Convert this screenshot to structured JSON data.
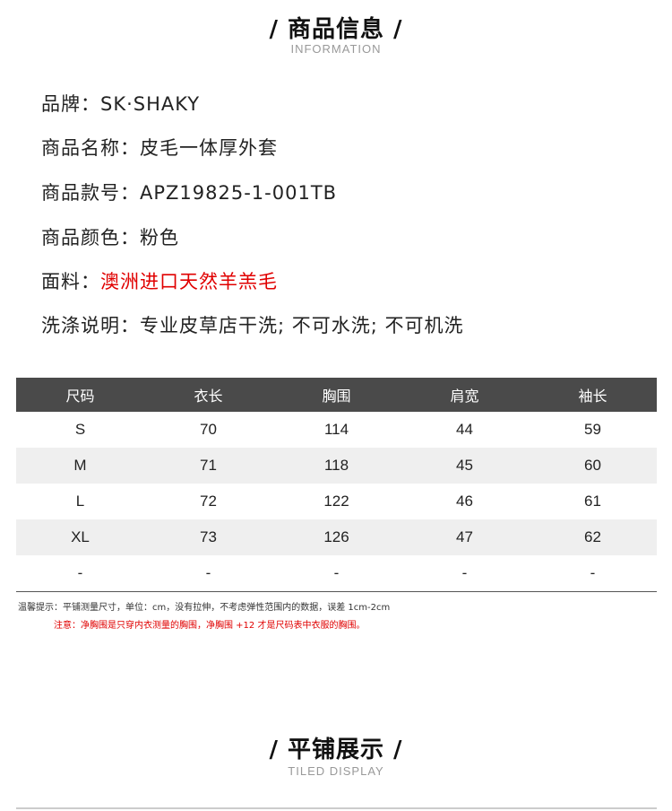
{
  "info_section": {
    "title": "/ 商品信息 /",
    "subtitle": "INFORMATION"
  },
  "info": [
    {
      "label": "品牌：",
      "value": "SK·SHAKY"
    },
    {
      "label": "商品名称：",
      "value": "皮毛一体厚外套"
    },
    {
      "label": "商品款号：",
      "value": "APZ19825-1-001TB"
    },
    {
      "label": "商品颜色：",
      "value": "粉色"
    },
    {
      "label": "面料：",
      "value": "澳洲进口天然羊羔毛"
    },
    {
      "label": "洗涤说明：",
      "value": "专业皮草店干洗; 不可水洗; 不可机洗"
    }
  ],
  "accent_color": "#e00000",
  "size_table": {
    "headers": [
      "尺码",
      "衣长",
      "胸围",
      "肩宽",
      "袖长"
    ],
    "rows": [
      [
        "S",
        "70",
        "114",
        "44",
        "59"
      ],
      [
        "M",
        "71",
        "118",
        "45",
        "60"
      ],
      [
        "L",
        "72",
        "122",
        "46",
        "61"
      ],
      [
        "XL",
        "73",
        "126",
        "47",
        "62"
      ],
      [
        "-",
        "-",
        "-",
        "-",
        "-"
      ]
    ]
  },
  "notes": {
    "tip": "温馨提示：平铺测量尺寸，单位：cm，没有拉伸，不考虑弹性范围内的数据，误差 1cm-2cm",
    "warning": "注意：净胸围是只穿内衣测量的胸围，净胸围 +12 才是尺码表中衣服的胸围。"
  },
  "display_section": {
    "title": "/ 平铺展示 /",
    "subtitle": "TILED DISPLAY"
  }
}
